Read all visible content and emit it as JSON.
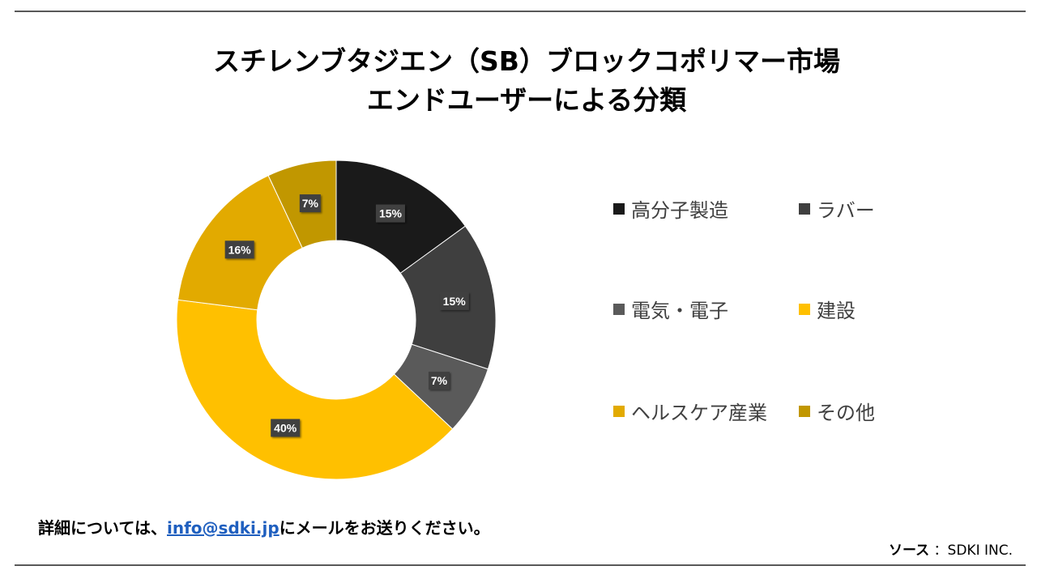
{
  "title_line1": "スチレンブタジエン（SB）ブロックコポリマー市場",
  "title_line2": "エンドユーザーによる分類",
  "chart_data": {
    "type": "pie",
    "donut": true,
    "categories": [
      "高分子製造",
      "ラバー",
      "電気・電子",
      "建設",
      "ヘルスケア産業",
      "その他"
    ],
    "values": [
      15,
      15,
      7,
      40,
      16,
      7
    ],
    "data_labels": [
      "15%",
      "15%",
      "7%",
      "40%",
      "16%",
      "7%"
    ],
    "colors": [
      "#1a1a1a",
      "#3f3f3f",
      "#5a5a5a",
      "#ffc000",
      "#e2aa00",
      "#c19700"
    ],
    "legend_position": "right"
  },
  "footer": {
    "prefix": "詳細については、",
    "email": "info@sdki.jp",
    "suffix": "にメールをお送りください。"
  },
  "source": {
    "label": "ソース",
    "value": "：SDKI INC."
  }
}
